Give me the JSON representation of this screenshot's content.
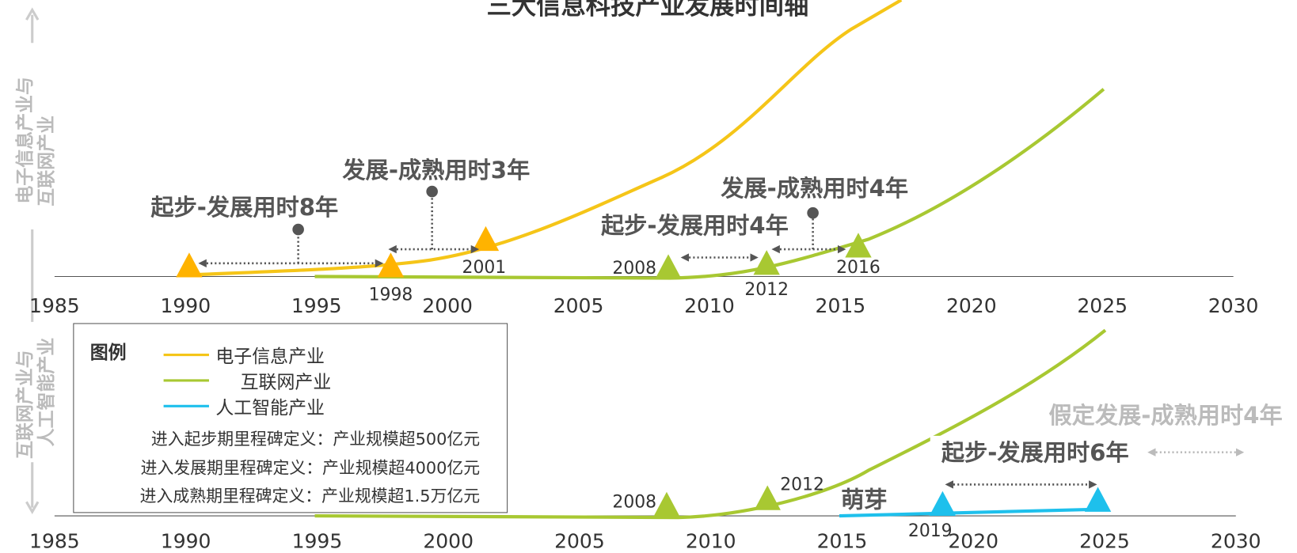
{
  "title": "三大信息科技产业发展时间轴",
  "side_labels": {
    "top": [
      "电子信息产业与",
      "互联网产业"
    ],
    "bottom": [
      "互联网产业与",
      "人工智能产业"
    ]
  },
  "top_axis": {
    "ticks": [
      1985,
      1990,
      1995,
      2000,
      2005,
      2010,
      2015,
      2020,
      2025,
      2030
    ]
  },
  "bottom_axis": {
    "ticks": [
      1985,
      1990,
      1995,
      2000,
      2005,
      2010,
      2015,
      2020,
      2025,
      2030
    ]
  },
  "top_annotations": [
    "起步-发展用时8年",
    "发展-成熟用时3年",
    "起步-发展用时4年",
    "发展-成熟用时4年"
  ],
  "top_milestone_labels": [
    "1998",
    "2001",
    "2008",
    "2012",
    "2016"
  ],
  "bottom_annotations": [
    "起步-发展用时6年",
    "假定发展-成熟用时4年",
    "萌芽"
  ],
  "bottom_milestone_labels": [
    "2008",
    "2012",
    "2019"
  ],
  "legend": {
    "title": "图例",
    "items": [
      {
        "name": "电子信息产业",
        "color": "#f5c518"
      },
      {
        "name": "互联网产业",
        "color": "#a8c832"
      },
      {
        "name": "人工智能产业",
        "color": "#1ec0ec"
      }
    ],
    "definitions": [
      "进入起步期里程碑定义：产业规模超500亿元",
      "进入发展期里程碑定义：产业规模超4000亿元",
      "进入成熟期里程碑定义：产业规模超1.5万亿元"
    ]
  }
}
